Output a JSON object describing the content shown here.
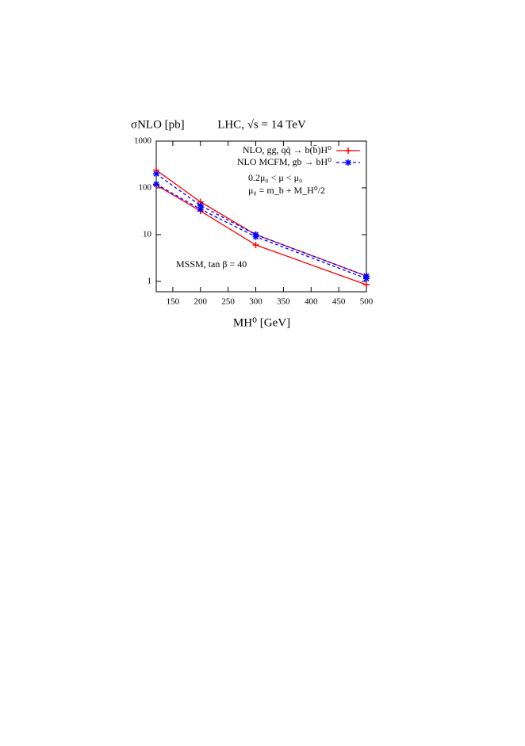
{
  "chart_data": {
    "type": "band",
    "title": "LHC, √s = 14 TeV",
    "y_label": "σNLO [pb]",
    "x_label": "MH⁰ [GeV]",
    "annotations": [
      "0.2μ₀ < μ < μ₀",
      "μ₀ = m_b + M_H⁰/2",
      "MSSM, tan β = 40"
    ],
    "x": [
      120,
      200,
      300,
      500
    ],
    "series": [
      {
        "name": "NLO, gg, qq̄ → b(b̄)H⁰",
        "color": "#ff0000",
        "dash": false,
        "marker": "+",
        "upper": [
          240,
          50,
          10,
          1.3
        ],
        "lower": [
          115,
          32,
          6,
          0.85
        ]
      },
      {
        "name": "NLO MCFM, gb → bH⁰",
        "color": "#0000ff",
        "dash": true,
        "marker": "*",
        "upper": [
          200,
          42,
          10,
          1.3
        ],
        "lower": [
          120,
          35,
          9,
          1.15
        ]
      }
    ],
    "xlim": [
      120,
      500
    ],
    "xticks": [
      150,
      200,
      250,
      300,
      350,
      400,
      450,
      500
    ],
    "ylim": [
      0.6,
      1000
    ],
    "yticks": [
      1,
      10,
      100,
      1000
    ],
    "log_y": true
  }
}
